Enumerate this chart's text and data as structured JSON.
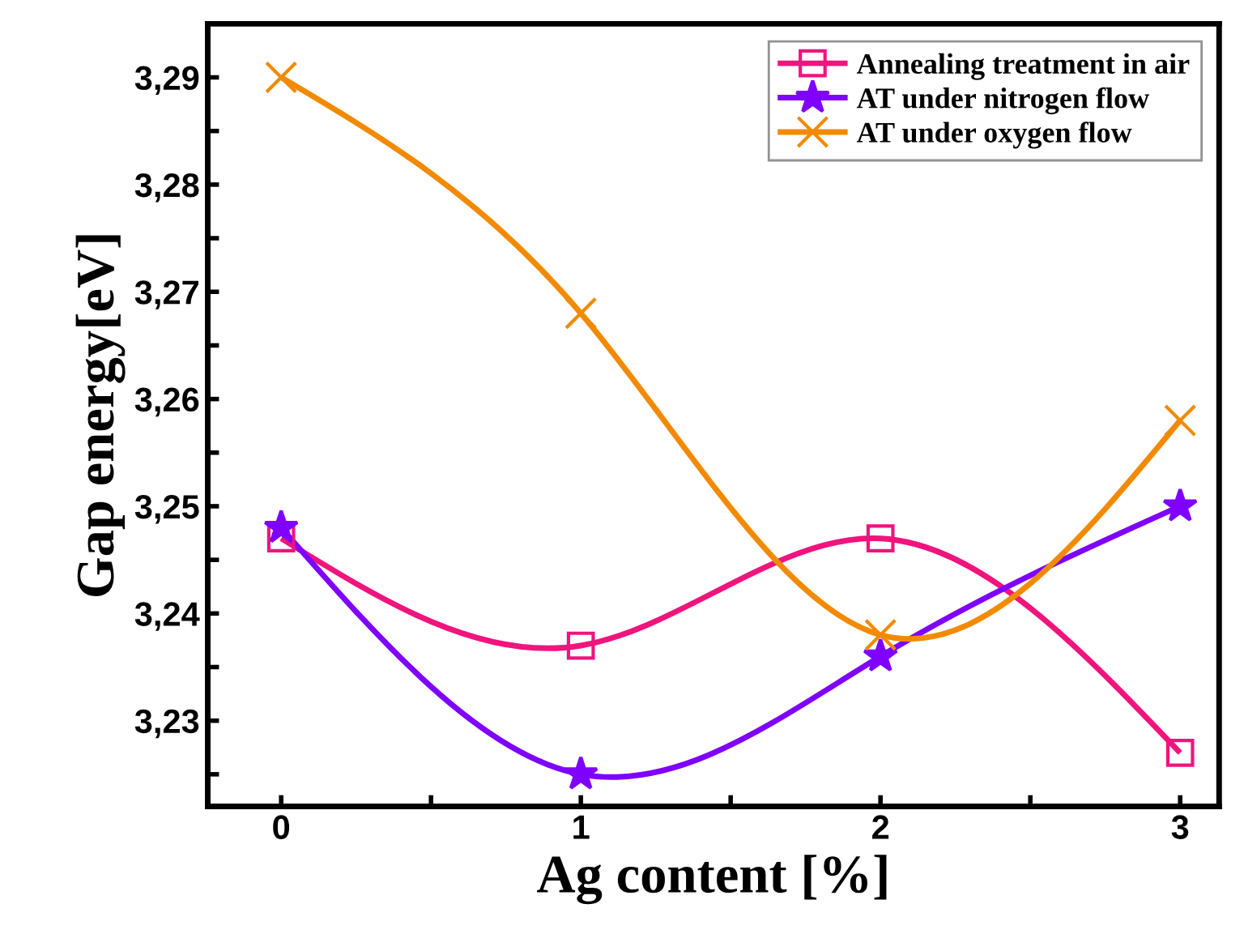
{
  "chart_data": {
    "type": "line",
    "xlabel": "Ag content [%]",
    "ylabel": "Gap energy[eV]",
    "x": [
      0,
      1,
      2,
      3
    ],
    "series": [
      {
        "name": "Annealing treatment in air",
        "color": "#f0147d",
        "marker": "square",
        "values": [
          3.247,
          3.237,
          3.247,
          3.227
        ]
      },
      {
        "name": "AT under nitrogen flow",
        "color": "#7f00ff",
        "marker": "star",
        "values": [
          3.248,
          3.225,
          3.236,
          3.25
        ]
      },
      {
        "name": "AT under oxygen flow",
        "color": "#f28a00",
        "marker": "cross",
        "values": [
          3.29,
          3.268,
          3.238,
          3.258
        ]
      }
    ],
    "xlim": [
      -0.245,
      3.13
    ],
    "ylim": [
      3.222,
      3.295
    ],
    "xticks": [
      0,
      {
        "value": 0.5,
        "label": null
      },
      1,
      {
        "value": 1.5,
        "label": null
      },
      2,
      {
        "value": 2.5,
        "label": null
      },
      3
    ],
    "yticks": [
      {
        "value": 3.225,
        "label": null
      },
      {
        "value": 3.23,
        "label": "3,23"
      },
      {
        "value": 3.235,
        "label": null
      },
      {
        "value": 3.24,
        "label": "3,24"
      },
      {
        "value": 3.245,
        "label": null
      },
      {
        "value": 3.25,
        "label": "3,25"
      },
      {
        "value": 3.255,
        "label": null
      },
      {
        "value": 3.26,
        "label": "3,26"
      },
      {
        "value": 3.265,
        "label": null
      },
      {
        "value": 3.27,
        "label": "3,27"
      },
      {
        "value": 3.275,
        "label": null
      },
      {
        "value": 3.28,
        "label": "3,28"
      },
      {
        "value": 3.285,
        "label": null
      },
      {
        "value": 3.29,
        "label": "3,29"
      }
    ],
    "grid": false,
    "legend": "top right",
    "line_style": "solid"
  }
}
